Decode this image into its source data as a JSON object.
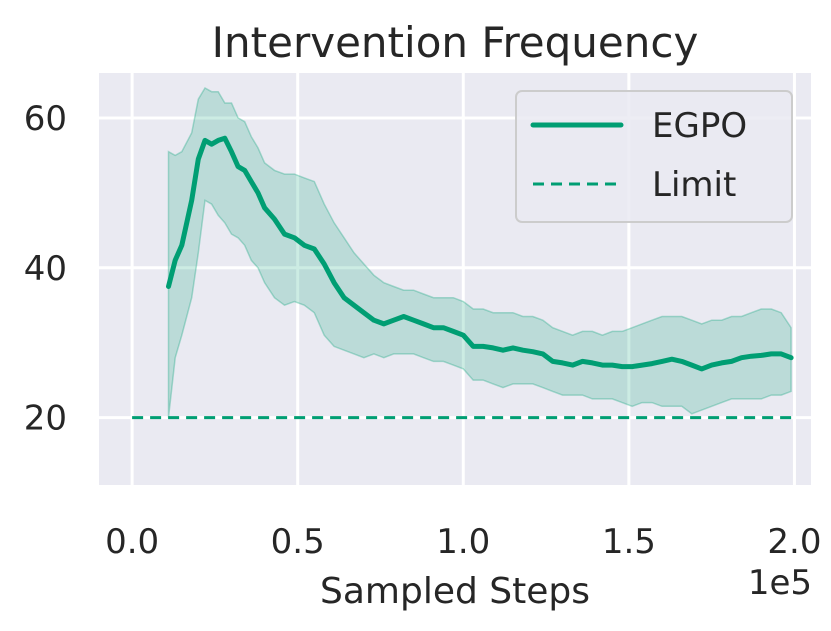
{
  "chart_data": {
    "type": "line",
    "title": "Intervention Frequency",
    "xlabel": "Sampled Steps",
    "ylabel": "",
    "x_scale_label": "1e5",
    "xlim": [
      -0.1,
      2.05
    ],
    "ylim": [
      11,
      66
    ],
    "x_ticks": [
      0.0,
      0.5,
      1.0,
      1.5,
      2.0
    ],
    "x_tick_labels": [
      "0.0",
      "0.5",
      "1.0",
      "1.5",
      "2.0"
    ],
    "y_ticks": [
      20,
      40,
      60
    ],
    "y_tick_labels": [
      "20",
      "40",
      "60"
    ],
    "grid": true,
    "legend": {
      "location": "upper right",
      "entries": [
        "EGPO",
        "Limit"
      ]
    },
    "colors": {
      "series": "#009e73",
      "band": "#009e73",
      "background": "#eaeaf2",
      "grid": "#ffffff"
    },
    "series": [
      {
        "name": "EGPO",
        "style": "solid",
        "x": [
          0.11,
          0.13,
          0.15,
          0.18,
          0.2,
          0.22,
          0.24,
          0.26,
          0.28,
          0.3,
          0.32,
          0.34,
          0.36,
          0.38,
          0.4,
          0.43,
          0.46,
          0.49,
          0.52,
          0.55,
          0.58,
          0.61,
          0.64,
          0.67,
          0.7,
          0.73,
          0.76,
          0.79,
          0.82,
          0.85,
          0.88,
          0.91,
          0.94,
          0.97,
          1.0,
          1.03,
          1.06,
          1.09,
          1.12,
          1.15,
          1.18,
          1.21,
          1.24,
          1.27,
          1.3,
          1.33,
          1.36,
          1.39,
          1.42,
          1.45,
          1.48,
          1.51,
          1.54,
          1.57,
          1.6,
          1.63,
          1.66,
          1.69,
          1.72,
          1.75,
          1.78,
          1.81,
          1.84,
          1.87,
          1.9,
          1.93,
          1.96,
          1.99
        ],
        "y": [
          37.5,
          41.0,
          43.0,
          49.0,
          54.5,
          57.0,
          56.5,
          57.0,
          57.3,
          55.5,
          53.5,
          53.0,
          51.5,
          50.0,
          48.0,
          46.5,
          44.5,
          44.0,
          43.0,
          42.5,
          40.5,
          38.0,
          36.0,
          35.0,
          34.0,
          33.0,
          32.5,
          33.0,
          33.5,
          33.0,
          32.5,
          32.0,
          32.0,
          31.5,
          31.0,
          29.5,
          29.5,
          29.3,
          29.0,
          29.3,
          29.0,
          28.8,
          28.5,
          27.5,
          27.3,
          27.0,
          27.5,
          27.3,
          27.0,
          27.0,
          26.8,
          26.8,
          27.0,
          27.2,
          27.5,
          27.8,
          27.5,
          27.0,
          26.5,
          27.0,
          27.3,
          27.5,
          28.0,
          28.2,
          28.3,
          28.5,
          28.5,
          28.0
        ],
        "lower": [
          20.0,
          28.0,
          31.0,
          36.0,
          42.0,
          49.0,
          48.5,
          47.0,
          46.0,
          44.5,
          44.0,
          43.0,
          41.0,
          40.0,
          38.0,
          36.0,
          35.0,
          35.5,
          35.0,
          34.0,
          31.0,
          29.5,
          29.0,
          28.5,
          28.0,
          28.5,
          28.0,
          28.5,
          28.5,
          28.5,
          28.0,
          27.5,
          27.5,
          27.0,
          26.5,
          25.0,
          25.0,
          24.5,
          24.0,
          24.5,
          24.5,
          24.5,
          24.0,
          23.5,
          23.0,
          23.0,
          23.0,
          22.5,
          22.5,
          22.5,
          22.0,
          21.5,
          22.0,
          22.0,
          21.5,
          21.5,
          21.5,
          20.5,
          21.0,
          21.5,
          22.0,
          22.5,
          22.5,
          22.5,
          22.5,
          23.0,
          23.0,
          23.5
        ],
        "upper": [
          55.5,
          55.0,
          55.5,
          58.0,
          62.5,
          64.0,
          63.5,
          63.5,
          62.0,
          62.0,
          60.0,
          59.5,
          57.5,
          56.0,
          54.0,
          53.0,
          52.5,
          52.5,
          52.0,
          51.5,
          48.5,
          46.0,
          44.0,
          42.0,
          40.5,
          39.0,
          38.0,
          37.5,
          37.0,
          37.0,
          36.5,
          36.0,
          36.0,
          36.0,
          35.5,
          34.5,
          34.5,
          34.0,
          34.0,
          34.0,
          33.5,
          33.5,
          33.0,
          32.0,
          31.5,
          31.0,
          31.5,
          31.5,
          31.0,
          31.5,
          31.5,
          32.0,
          32.5,
          33.0,
          33.5,
          33.5,
          33.5,
          33.0,
          32.5,
          33.0,
          33.0,
          33.5,
          33.5,
          34.0,
          34.5,
          34.5,
          34.0,
          32.0
        ]
      },
      {
        "name": "Limit",
        "style": "dashed",
        "x": [
          0.0,
          2.0
        ],
        "y": [
          20.0,
          20.0
        ]
      }
    ]
  }
}
